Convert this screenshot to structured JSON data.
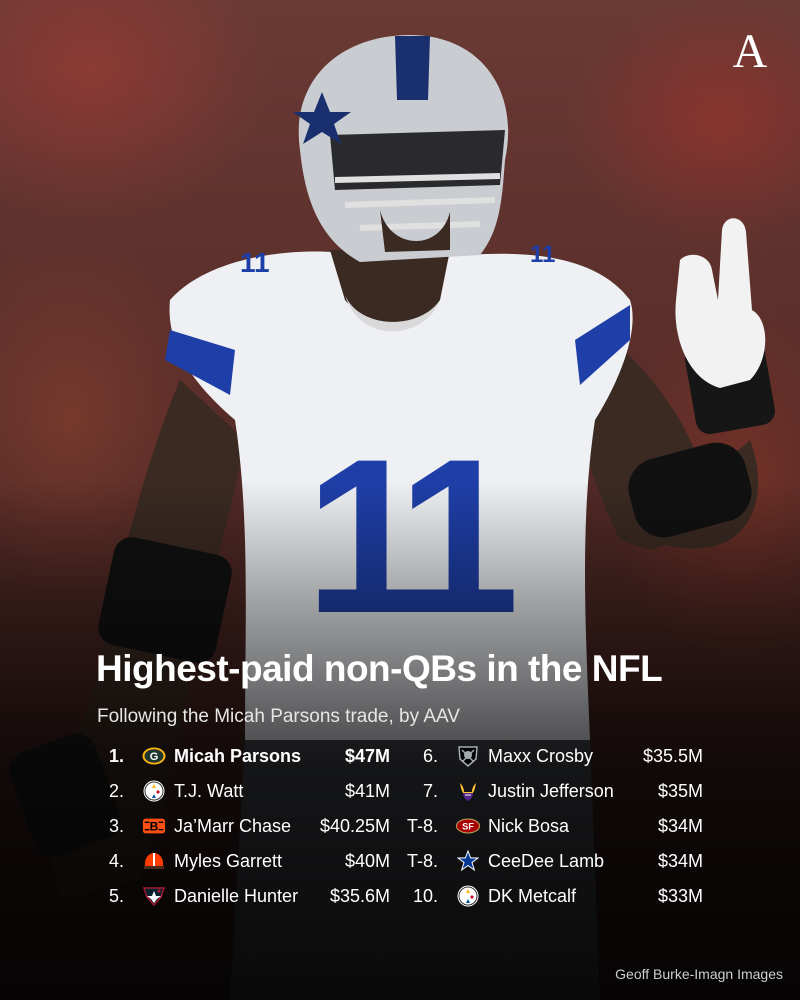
{
  "brand": {
    "logo": "A"
  },
  "title": "Highest-paid non-QBs in the NFL",
  "subtitle": "Following the Micah Parsons trade, by AAV",
  "left_column": [
    {
      "rank": "1.",
      "name": "Micah Parsons",
      "amount": "$47M",
      "icon": "packers-logo-icon",
      "highlight": true
    },
    {
      "rank": "2.",
      "name": "T.J. Watt",
      "amount": "$41M",
      "icon": "steelers-logo-icon",
      "highlight": false
    },
    {
      "rank": "3.",
      "name": "Ja’Marr Chase",
      "amount": "$40.25M",
      "icon": "bengals-logo-icon",
      "highlight": false
    },
    {
      "rank": "4.",
      "name": "Myles Garrett",
      "amount": "$40M",
      "icon": "browns-logo-icon",
      "highlight": false
    },
    {
      "rank": "5.",
      "name": "Danielle Hunter",
      "amount": "$35.6M",
      "icon": "texans-logo-icon",
      "highlight": false
    }
  ],
  "right_column": [
    {
      "rank": "6.",
      "name": "Maxx Crosby",
      "amount": "$35.5M",
      "icon": "raiders-logo-icon"
    },
    {
      "rank": "7.",
      "name": "Justin Jefferson",
      "amount": "$35M",
      "icon": "vikings-logo-icon"
    },
    {
      "rank": "T-8.",
      "name": "Nick Bosa",
      "amount": "$34M",
      "icon": "49ers-logo-icon"
    },
    {
      "rank": "T-8.",
      "name": "CeeDee Lamb",
      "amount": "$34M",
      "icon": "cowboys-logo-icon"
    },
    {
      "rank": "10.",
      "name": "DK Metcalf",
      "amount": "$33M",
      "icon": "steelers-logo-icon"
    }
  ],
  "jersey_number": "11",
  "credit": "Geoff Burke-Imagn Images",
  "colors": {
    "jersey_blue": "#1f3fa8",
    "jersey_white": "#eef0f3",
    "packers_green": "#203731",
    "packers_gold": "#ffb612",
    "bengals_orange": "#fb4f14",
    "browns_orange": "#ff3c00",
    "texans_navy": "#03202f",
    "texans_red": "#a71930",
    "raiders_silver": "#a5acaf",
    "vikings_purple": "#4f2683",
    "niners_red": "#aa0000",
    "cowboys_navy": "#003594",
    "steelers_yellow": "#ffb612"
  }
}
